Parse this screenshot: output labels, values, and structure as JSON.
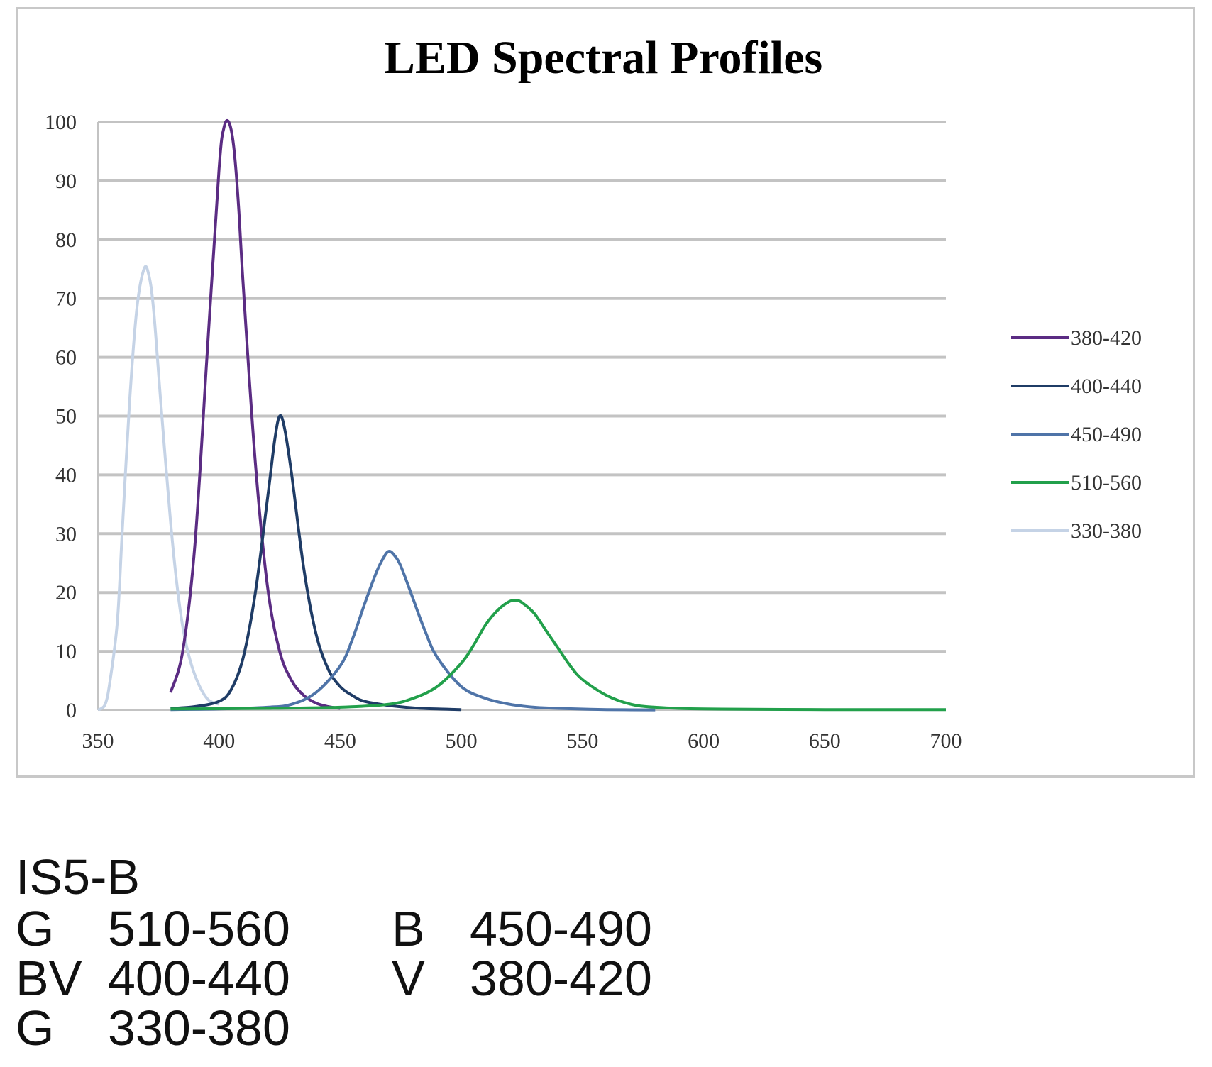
{
  "chart_data": {
    "type": "line",
    "title": "LED Spectral Profiles",
    "xlabel": "",
    "ylabel": "",
    "xlim": [
      350,
      700
    ],
    "ylim": [
      0,
      100
    ],
    "xticks": [
      350,
      400,
      450,
      500,
      550,
      600,
      650,
      700
    ],
    "yticks": [
      0,
      10,
      20,
      30,
      40,
      50,
      60,
      70,
      80,
      90,
      100
    ],
    "grid": "horizontal",
    "legend": "right",
    "series": [
      {
        "name": "380-420",
        "color": "#5b2c83",
        "x": [
          380,
          385,
          390,
          395,
          400,
          402,
          404,
          406,
          408,
          410,
          415,
          420,
          425,
          430,
          435,
          440,
          445,
          450
        ],
        "y": [
          3,
          10,
          28,
          60,
          92,
          99,
          100,
          96,
          86,
          72,
          42,
          21,
          10,
          5,
          2.5,
          1.2,
          0.6,
          0.3
        ]
      },
      {
        "name": "400-440",
        "color": "#1f3c66",
        "x": [
          380,
          390,
          400,
          405,
          410,
          415,
          420,
          423,
          425,
          427,
          430,
          435,
          440,
          445,
          450,
          455,
          460,
          470,
          480,
          490,
          500
        ],
        "y": [
          0.3,
          0.6,
          1.5,
          3.5,
          9,
          20,
          36,
          46,
          50,
          48,
          40,
          24,
          13,
          7,
          4,
          2.5,
          1.5,
          0.8,
          0.4,
          0.2,
          0.1
        ]
      },
      {
        "name": "450-490",
        "color": "#4f74a8",
        "x": [
          380,
          400,
          420,
          430,
          440,
          450,
          455,
          460,
          465,
          468,
          470,
          472,
          475,
          480,
          485,
          490,
          500,
          510,
          520,
          530,
          540,
          560,
          580
        ],
        "y": [
          0.1,
          0.2,
          0.5,
          1,
          3,
          7.5,
          12,
          18,
          23.5,
          26,
          27,
          26.5,
          24.5,
          19,
          13.5,
          9,
          4,
          2,
          1,
          0.5,
          0.3,
          0.1,
          0.05
        ]
      },
      {
        "name": "510-560",
        "color": "#22a04b",
        "x": [
          380,
          420,
          450,
          470,
          480,
          490,
          500,
          505,
          510,
          515,
          520,
          523,
          525,
          530,
          535,
          540,
          545,
          550,
          560,
          570,
          580,
          600,
          650,
          700
        ],
        "y": [
          0.2,
          0.3,
          0.5,
          1,
          2,
          4,
          8,
          11,
          14.5,
          17,
          18.5,
          18.6,
          18.3,
          16.5,
          13.5,
          10.5,
          7.5,
          5.2,
          2.5,
          1,
          0.5,
          0.2,
          0.1,
          0.1
        ]
      },
      {
        "name": "330-380",
        "color": "#c5d3e6",
        "x": [
          350,
          353,
          355,
          358,
          360,
          363,
          366,
          369,
          371,
          373,
          376,
          380,
          383,
          386,
          390,
          395,
          400
        ],
        "y": [
          0,
          1,
          5,
          15,
          30,
          52,
          68,
          75,
          74,
          68,
          52,
          32,
          20,
          12,
          6,
          2,
          1
        ]
      }
    ]
  },
  "caption": {
    "title": "IS5-B",
    "rows": [
      {
        "code1": "G",
        "range1": "510-560",
        "code2": "B",
        "range2": "450-490"
      },
      {
        "code1": "BV",
        "range1": "400-440",
        "code2": "V",
        "range2": "380-420"
      },
      {
        "code1": "G",
        "range1": "330-380",
        "code2": "",
        "range2": ""
      }
    ]
  }
}
